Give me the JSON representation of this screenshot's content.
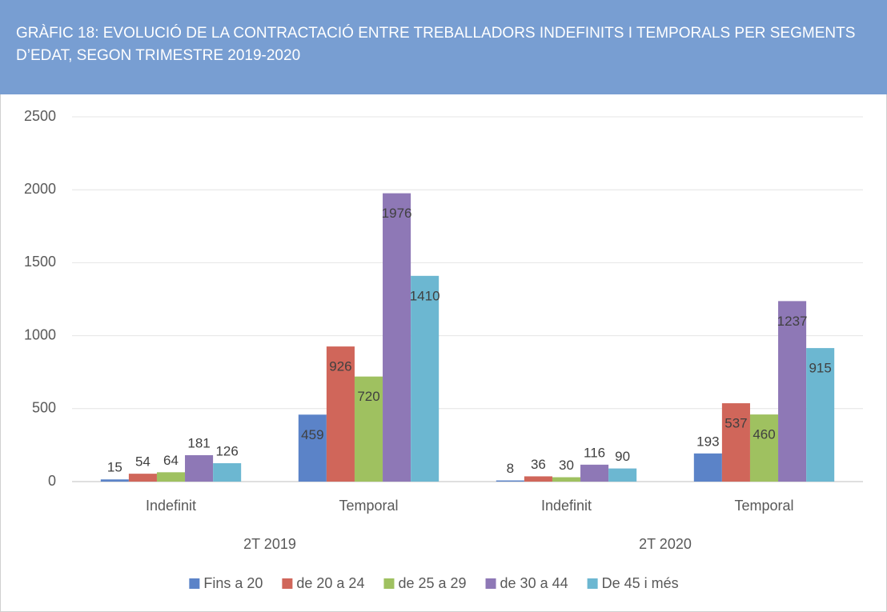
{
  "chart_data": {
    "type": "bar",
    "title": "GRÀFIC 18: EVOLUCIÓ DE LA CONTRACTACIÓ ENTRE TREBALLADORS INDEFINITS I TEMPORALS PER SEGMENTS D’EDAT, SEGON TRIMESTRE 2019-2020",
    "categories": [
      "Indefinit",
      "Temporal",
      "Indefinit",
      "Temporal"
    ],
    "groups": [
      "2T 2019",
      "2T 2020"
    ],
    "series": [
      {
        "name": "Fins a 20",
        "color": "#5b83c8",
        "values": [
          15,
          459,
          8,
          193
        ]
      },
      {
        "name": "de 20 a 24",
        "color": "#d0665a",
        "values": [
          54,
          926,
          36,
          537
        ]
      },
      {
        "name": "de 25 a 29",
        "color": "#9fc160",
        "values": [
          64,
          720,
          30,
          460
        ]
      },
      {
        "name": "de 30 a 44",
        "color": "#8e78b6",
        "values": [
          181,
          1976,
          116,
          1237
        ]
      },
      {
        "name": "De 45 i més",
        "color": "#6cb7d1",
        "values": [
          126,
          1410,
          90,
          915
        ]
      }
    ],
    "ylim": [
      0,
      2500
    ],
    "yticks": [
      0,
      500,
      1000,
      1500,
      2000,
      2500
    ],
    "grid": true,
    "legend": "bottom"
  }
}
